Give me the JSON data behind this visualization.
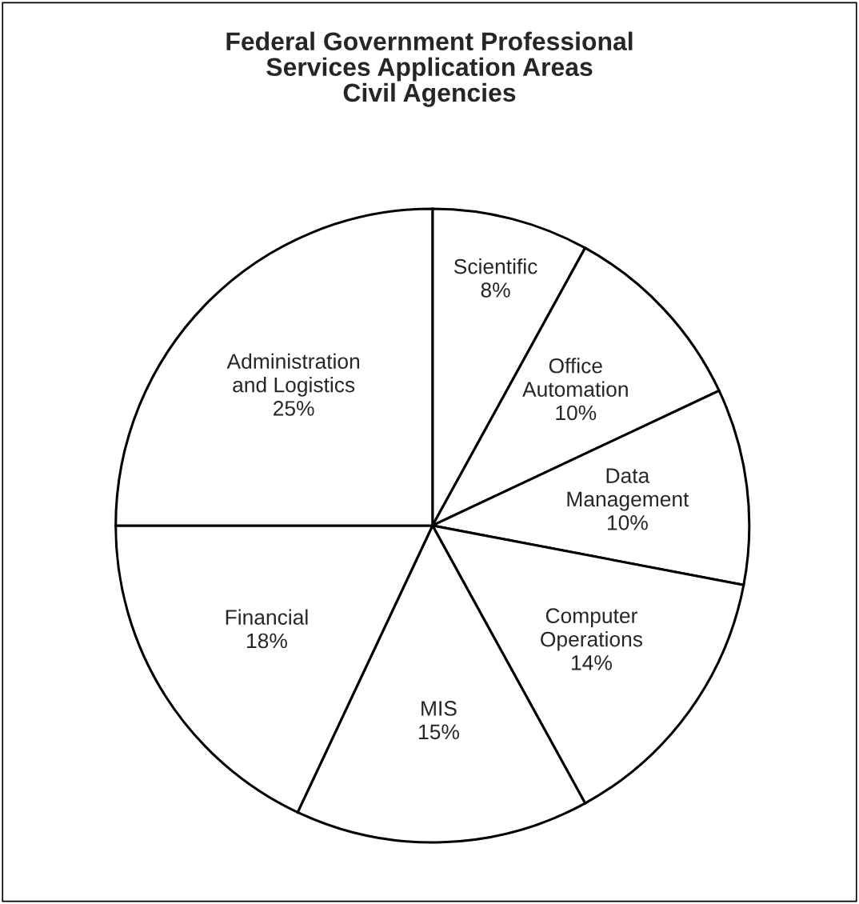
{
  "chart_data": {
    "type": "pie",
    "title": "Federal Government Professional\nServices Application Areas\nCivil Agencies",
    "categories": [
      "Scientific",
      "Office\nAutomation",
      "Data\nManagement",
      "Computer\nOperations",
      "MIS",
      "Financial",
      "Administration\nand Logistics"
    ],
    "values": [
      8,
      10,
      10,
      14,
      15,
      18,
      25
    ],
    "value_labels": [
      "8%",
      "10%",
      "10%",
      "14%",
      "15%",
      "18%",
      "25%"
    ],
    "colors": [
      "#ffffff",
      "#ffffff",
      "#ffffff",
      "#ffffff",
      "#ffffff",
      "#ffffff",
      "#ffffff"
    ]
  }
}
